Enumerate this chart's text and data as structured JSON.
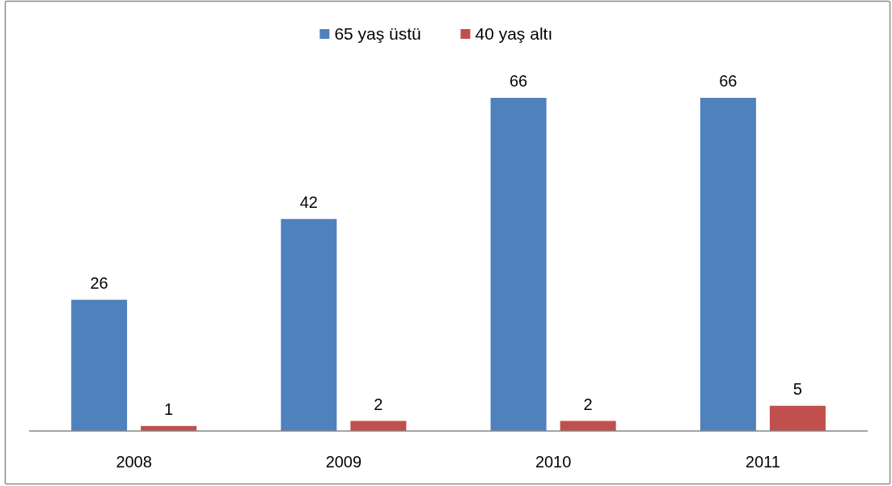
{
  "chart_data": {
    "type": "bar",
    "categories": [
      "2008",
      "2009",
      "2010",
      "2011"
    ],
    "series": [
      {
        "name": "65 yaş üstü",
        "color": "#4f81bd",
        "values": [
          26,
          42,
          66,
          66
        ]
      },
      {
        "name": "40 yaş altı",
        "color": "#c0504d",
        "values": [
          1,
          2,
          2,
          5
        ]
      }
    ],
    "data_labels": true,
    "legend": "top"
  }
}
